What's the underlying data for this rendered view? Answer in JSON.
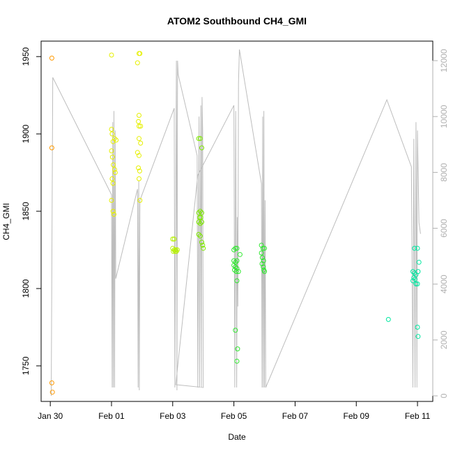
{
  "chart_data": {
    "type": "scatter",
    "title": "ATOM2 Southbound CH4_GMI",
    "xlabel": "Date",
    "ylabel": "CH4_GMI",
    "x_ticks": [
      "Jan 30",
      "Feb 01",
      "Feb 03",
      "Feb 05",
      "Feb 07",
      "Feb 09",
      "Feb 11"
    ],
    "y_ticks": [
      "1750",
      "1800",
      "1850",
      "1900",
      "1950"
    ],
    "y2_ticks": [
      "0",
      "2000",
      "4000",
      "6000",
      "8000",
      "10000",
      "12000"
    ],
    "xlim_days": [
      -1.3,
      11.5
    ],
    "ylim": [
      1727,
      1960
    ],
    "y2lim": [
      -200,
      12700
    ],
    "grid": false,
    "colors": {
      "axis": "#000000",
      "secondary_axis": "#b0b0b0",
      "altitude_line": "#bdbdbd"
    },
    "series": [
      {
        "color": "#ff9900",
        "points": [
          [
            -0.95,
            1949
          ],
          [
            -0.95,
            1891
          ],
          [
            -0.95,
            1739
          ],
          [
            -0.93,
            1733
          ]
        ]
      },
      {
        "color": "#e6f000",
        "points": [
          [
            1.0,
            1951
          ],
          [
            1.0,
            1903
          ],
          [
            1.02,
            1900
          ],
          [
            1.05,
            1895
          ],
          [
            1.1,
            1897
          ],
          [
            1.15,
            1896
          ],
          [
            1.0,
            1889
          ],
          [
            1.03,
            1885
          ],
          [
            1.06,
            1880
          ],
          [
            1.1,
            1877
          ],
          [
            1.12,
            1875
          ],
          [
            1.02,
            1871
          ],
          [
            1.05,
            1868
          ],
          [
            1.0,
            1857
          ],
          [
            1.05,
            1850
          ],
          [
            1.08,
            1848
          ],
          [
            1.85,
            1946
          ],
          [
            1.9,
            1952
          ],
          [
            1.93,
            1952
          ],
          [
            1.9,
            1912
          ],
          [
            1.88,
            1908
          ],
          [
            1.9,
            1905
          ],
          [
            1.95,
            1905
          ],
          [
            1.9,
            1897
          ],
          [
            1.95,
            1894
          ],
          [
            1.85,
            1888
          ],
          [
            1.9,
            1886
          ],
          [
            1.88,
            1878
          ],
          [
            1.92,
            1876
          ],
          [
            1.9,
            1871
          ],
          [
            1.93,
            1857
          ]
        ]
      },
      {
        "color": "#b5f000",
        "points": [
          [
            3.0,
            1832
          ],
          [
            3.05,
            1832
          ],
          [
            3.0,
            1826
          ],
          [
            3.05,
            1825
          ],
          [
            3.1,
            1825
          ],
          [
            3.15,
            1825
          ],
          [
            3.02,
            1824
          ],
          [
            3.08,
            1824
          ],
          [
            3.12,
            1824
          ]
        ]
      },
      {
        "color": "#7ee800",
        "points": [
          [
            3.85,
            1897
          ],
          [
            3.9,
            1897
          ],
          [
            3.95,
            1891
          ],
          [
            3.85,
            1849
          ],
          [
            3.9,
            1850
          ],
          [
            3.95,
            1849
          ],
          [
            3.88,
            1846
          ],
          [
            3.92,
            1846
          ],
          [
            3.85,
            1843
          ],
          [
            3.9,
            1842
          ],
          [
            3.95,
            1843
          ],
          [
            3.85,
            1835
          ],
          [
            3.9,
            1834
          ],
          [
            3.95,
            1830
          ],
          [
            3.98,
            1828
          ],
          [
            4.0,
            1826
          ]
        ]
      },
      {
        "color": "#30e830",
        "points": [
          [
            5.0,
            1825
          ],
          [
            5.05,
            1826
          ],
          [
            5.1,
            1826
          ],
          [
            5.0,
            1818
          ],
          [
            5.05,
            1817
          ],
          [
            5.1,
            1818
          ],
          [
            5.0,
            1815
          ],
          [
            5.05,
            1814
          ],
          [
            5.1,
            1813
          ],
          [
            5.02,
            1812
          ],
          [
            5.08,
            1811
          ],
          [
            5.15,
            1811
          ],
          [
            5.2,
            1822
          ],
          [
            5.1,
            1805
          ],
          [
            5.05,
            1773
          ],
          [
            5.12,
            1761
          ],
          [
            5.1,
            1753
          ],
          [
            5.9,
            1828
          ],
          [
            5.95,
            1826
          ],
          [
            6.0,
            1826
          ],
          [
            5.9,
            1823
          ],
          [
            5.93,
            1820
          ],
          [
            5.97,
            1818
          ],
          [
            5.92,
            1816
          ],
          [
            5.96,
            1814
          ],
          [
            5.98,
            1812
          ],
          [
            6.0,
            1811
          ]
        ]
      },
      {
        "color": "#00e8a0",
        "points": [
          [
            10.05,
            1780
          ],
          [
            10.9,
            1826
          ],
          [
            11.0,
            1826
          ],
          [
            10.85,
            1811
          ],
          [
            10.9,
            1810
          ],
          [
            10.95,
            1809
          ],
          [
            10.88,
            1807
          ],
          [
            10.92,
            1806
          ],
          [
            10.85,
            1805
          ],
          [
            10.95,
            1803
          ],
          [
            11.0,
            1803
          ],
          [
            11.05,
            1817
          ],
          [
            11.02,
            1811
          ],
          [
            11.0,
            1775
          ],
          [
            11.02,
            1769
          ]
        ]
      }
    ],
    "altitude": [
      [
        -0.97,
        0
      ],
      [
        -0.92,
        11400
      ],
      [
        1.0,
        7200
      ],
      [
        1.02,
        300
      ],
      [
        1.04,
        9800
      ],
      [
        1.06,
        300
      ],
      [
        1.08,
        10200
      ],
      [
        1.1,
        300
      ],
      [
        1.12,
        9500
      ],
      [
        1.14,
        4200
      ],
      [
        1.85,
        7400
      ],
      [
        1.87,
        300
      ],
      [
        1.89,
        7700
      ],
      [
        1.91,
        200
      ],
      [
        1.93,
        7000
      ],
      [
        3.05,
        10300
      ],
      [
        3.07,
        300
      ],
      [
        3.12,
        12000
      ],
      [
        3.14,
        200
      ],
      [
        3.16,
        12000
      ],
      [
        3.18,
        11500
      ],
      [
        3.8,
        8600
      ],
      [
        3.82,
        300
      ],
      [
        3.86,
        10000
      ],
      [
        3.88,
        300
      ],
      [
        3.92,
        10400
      ],
      [
        3.94,
        300
      ],
      [
        3.96,
        10700
      ],
      [
        3.98,
        9500
      ],
      [
        4.0,
        300
      ],
      [
        3.1,
        400
      ],
      [
        3.82,
        7900
      ],
      [
        5.0,
        10400
      ],
      [
        5.03,
        300
      ],
      [
        5.06,
        10200
      ],
      [
        5.09,
        300
      ],
      [
        5.11,
        6400
      ],
      [
        5.13,
        3200
      ],
      [
        5.15,
        11200
      ],
      [
        5.18,
        12400
      ],
      [
        5.9,
        7600
      ],
      [
        5.92,
        300
      ],
      [
        5.94,
        10000
      ],
      [
        5.96,
        300
      ],
      [
        5.98,
        10200
      ],
      [
        6.0,
        300
      ],
      [
        6.02,
        7000
      ],
      [
        6.04,
        300
      ],
      [
        10.0,
        10600
      ],
      [
        10.8,
        8200
      ],
      [
        10.85,
        300
      ],
      [
        10.88,
        9200
      ],
      [
        10.92,
        300
      ],
      [
        10.95,
        9800
      ],
      [
        10.98,
        300
      ],
      [
        11.0,
        9500
      ],
      [
        11.05,
        6200
      ],
      [
        11.1,
        5800
      ]
    ]
  }
}
